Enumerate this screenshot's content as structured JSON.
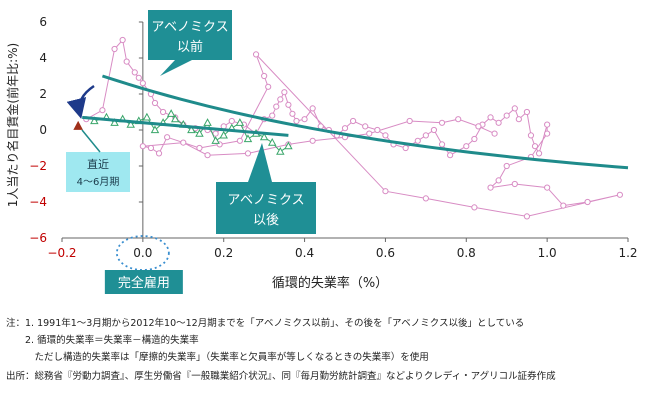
{
  "chart_data": {
    "type": "scatter",
    "xlabel": "循環的失業率（%）",
    "ylabel": "1人当たり名目賃金(前年比:%)",
    "xlim": [
      -0.2,
      1.2
    ],
    "ylim": [
      -6,
      6
    ],
    "x_ticks": [
      "−0.2",
      "0.0",
      "0.2",
      "0.4",
      "0.6",
      "0.8",
      "1.0",
      "1.2"
    ],
    "x_tick_values": [
      -0.2,
      0.0,
      0.2,
      0.4,
      0.6,
      0.8,
      1.0,
      1.2
    ],
    "y_ticks": [
      "−6",
      "−4",
      "−2",
      "0",
      "2",
      "4",
      "6"
    ],
    "y_tick_values": [
      -6,
      -4,
      -2,
      0,
      2,
      4,
      6
    ],
    "grid": false,
    "colors": {
      "before_series": "#d88cc4",
      "after_series": "#3aa66a",
      "latest_point": "#a0301a",
      "trend": "#1f8b8b",
      "callout_fill": "#1f8f95",
      "latest_label_fill": "#9fe8f0",
      "arrow": "#1e3a8a",
      "negative_tick": "#c00000",
      "full_employment_ring": "#3a8fd0"
    },
    "series": [
      {
        "marker": "circle",
        "points": [
          [
            -0.14,
            0.6
          ],
          [
            -0.1,
            1.1
          ],
          [
            -0.07,
            4.5
          ],
          [
            -0.05,
            5.0
          ],
          [
            -0.04,
            3.8
          ],
          [
            -0.02,
            3.2
          ],
          [
            -0.01,
            2.9
          ],
          [
            0.0,
            2.6
          ],
          [
            0.02,
            2.0
          ],
          [
            0.03,
            1.5
          ],
          [
            0.05,
            1.0
          ],
          [
            0.08,
            0.7
          ],
          [
            0.1,
            0.3
          ],
          [
            0.13,
            0.1
          ],
          [
            0.16,
            0.0
          ],
          [
            0.18,
            -0.2
          ],
          [
            0.2,
            0.2
          ],
          [
            0.22,
            0.5
          ],
          [
            0.25,
            0.3
          ],
          [
            0.28,
            -0.2
          ],
          [
            0.3,
            0.6
          ],
          [
            0.32,
            0.8
          ],
          [
            0.33,
            1.3
          ],
          [
            0.34,
            1.7
          ],
          [
            0.35,
            2.1
          ],
          [
            0.36,
            1.4
          ],
          [
            0.37,
            0.9
          ],
          [
            0.38,
            0.5
          ],
          [
            0.4,
            0.6
          ],
          [
            0.42,
            1.2
          ],
          [
            0.44,
            0.2
          ],
          [
            0.46,
            0.0
          ],
          [
            0.48,
            -0.3
          ],
          [
            0.5,
            0.1
          ],
          [
            0.52,
            0.5
          ],
          [
            0.55,
            0.2
          ],
          [
            0.58,
            0.0
          ],
          [
            0.6,
            -0.3
          ],
          [
            0.62,
            -0.8
          ],
          [
            0.65,
            -1.0
          ],
          [
            0.68,
            -0.6
          ],
          [
            0.7,
            -0.3
          ],
          [
            0.72,
            0.0
          ],
          [
            0.74,
            -0.8
          ],
          [
            0.76,
            -1.4
          ],
          [
            0.8,
            -0.9
          ],
          [
            0.82,
            -0.5
          ],
          [
            0.84,
            0.3
          ],
          [
            0.86,
            0.7
          ],
          [
            0.88,
            0.4
          ],
          [
            0.9,
            0.8
          ],
          [
            0.92,
            1.2
          ],
          [
            0.93,
            0.6
          ],
          [
            0.95,
            1.0
          ],
          [
            0.96,
            -0.3
          ],
          [
            0.97,
            -0.9
          ],
          [
            0.98,
            -1.3
          ],
          [
            1.0,
            0.3
          ],
          [
            1.0,
            -0.2
          ],
          [
            0.96,
            -1.5
          ],
          [
            0.9,
            -2.0
          ],
          [
            0.88,
            -2.8
          ],
          [
            0.86,
            -3.2
          ],
          [
            0.92,
            -3.0
          ],
          [
            1.0,
            -3.2
          ],
          [
            1.04,
            -4.2
          ],
          [
            1.1,
            -4.0
          ],
          [
            1.18,
            -3.6
          ],
          [
            0.95,
            -4.8
          ],
          [
            0.82,
            -4.3
          ],
          [
            0.7,
            -3.8
          ],
          [
            0.6,
            -3.4
          ],
          [
            0.28,
            4.2
          ],
          [
            0.3,
            3.0
          ],
          [
            0.31,
            2.4
          ],
          [
            0.24,
            -0.6
          ],
          [
            0.19,
            -0.8
          ],
          [
            0.14,
            -1.0
          ],
          [
            0.06,
            -0.4
          ],
          [
            0.04,
            -1.3
          ],
          [
            0.02,
            -1.0
          ],
          [
            0.0,
            -0.9
          ],
          [
            0.1,
            -0.7
          ],
          [
            0.16,
            -1.4
          ],
          [
            0.26,
            -1.3
          ],
          [
            0.36,
            -0.8
          ],
          [
            0.42,
            -0.6
          ],
          [
            0.5,
            -0.4
          ],
          [
            0.56,
            -0.2
          ],
          [
            0.66,
            0.5
          ],
          [
            0.74,
            0.4
          ],
          [
            0.78,
            0.6
          ],
          [
            0.83,
            0.2
          ],
          [
            0.87,
            -0.2
          ]
        ]
      },
      {
        "marker": "triangle",
        "points": [
          [
            -0.12,
            0.5
          ],
          [
            -0.09,
            0.7
          ],
          [
            -0.07,
            0.4
          ],
          [
            -0.05,
            0.6
          ],
          [
            -0.03,
            0.3
          ],
          [
            -0.01,
            0.5
          ],
          [
            0.01,
            0.7
          ],
          [
            0.03,
            0.0
          ],
          [
            0.05,
            0.4
          ],
          [
            0.07,
            0.9
          ],
          [
            0.08,
            0.6
          ],
          [
            0.1,
            0.3
          ],
          [
            0.12,
            0.0
          ],
          [
            0.14,
            -0.2
          ],
          [
            0.16,
            0.4
          ],
          [
            0.18,
            -0.6
          ],
          [
            0.2,
            -0.3
          ],
          [
            0.22,
            0.1
          ],
          [
            0.24,
            0.4
          ],
          [
            0.26,
            -0.5
          ],
          [
            0.28,
            -0.2
          ],
          [
            0.3,
            -0.4
          ],
          [
            0.32,
            -0.7
          ],
          [
            0.34,
            -1.2
          ],
          [
            0.36,
            -0.9
          ]
        ]
      }
    ],
    "latest_point": [
      -0.16,
      0.2
    ],
    "trend_lines": [
      {
        "x_range": [
          -0.1,
          1.2
        ],
        "y_at_start": 3.0,
        "y_at_end": -2.1
      },
      {
        "x_range": [
          -0.15,
          0.36
        ],
        "y_at_start": 0.7,
        "y_at_end": -0.3
      }
    ],
    "annotations": {
      "before_label_line1": "アベノミクス",
      "before_label_line2": "以前",
      "after_label_line1": "アベノミクス",
      "after_label_line2": "以後",
      "latest_label_line1": "直近",
      "latest_label_line2": "4～6月期",
      "full_employment_label": "完全雇用"
    }
  },
  "notes": {
    "note1": "注：1. 1991年1～3月期から2012年10～12月期までを「アベノミクス以前」、その後を「アベノミクス以後」としている",
    "note2": "　　2. 循環的失業率＝失業率－構造的失業率",
    "note3": "　　　ただし構造的失業率は「摩擦的失業率」（失業率と欠員率が等しくなるときの失業率）を使用",
    "note4": "出所：総務省『労動力調査』、厚生労働省『一般職業紹介状況』、同『毎月勤労統計調査』などよりクレディ・アグリコル証券作成"
  }
}
